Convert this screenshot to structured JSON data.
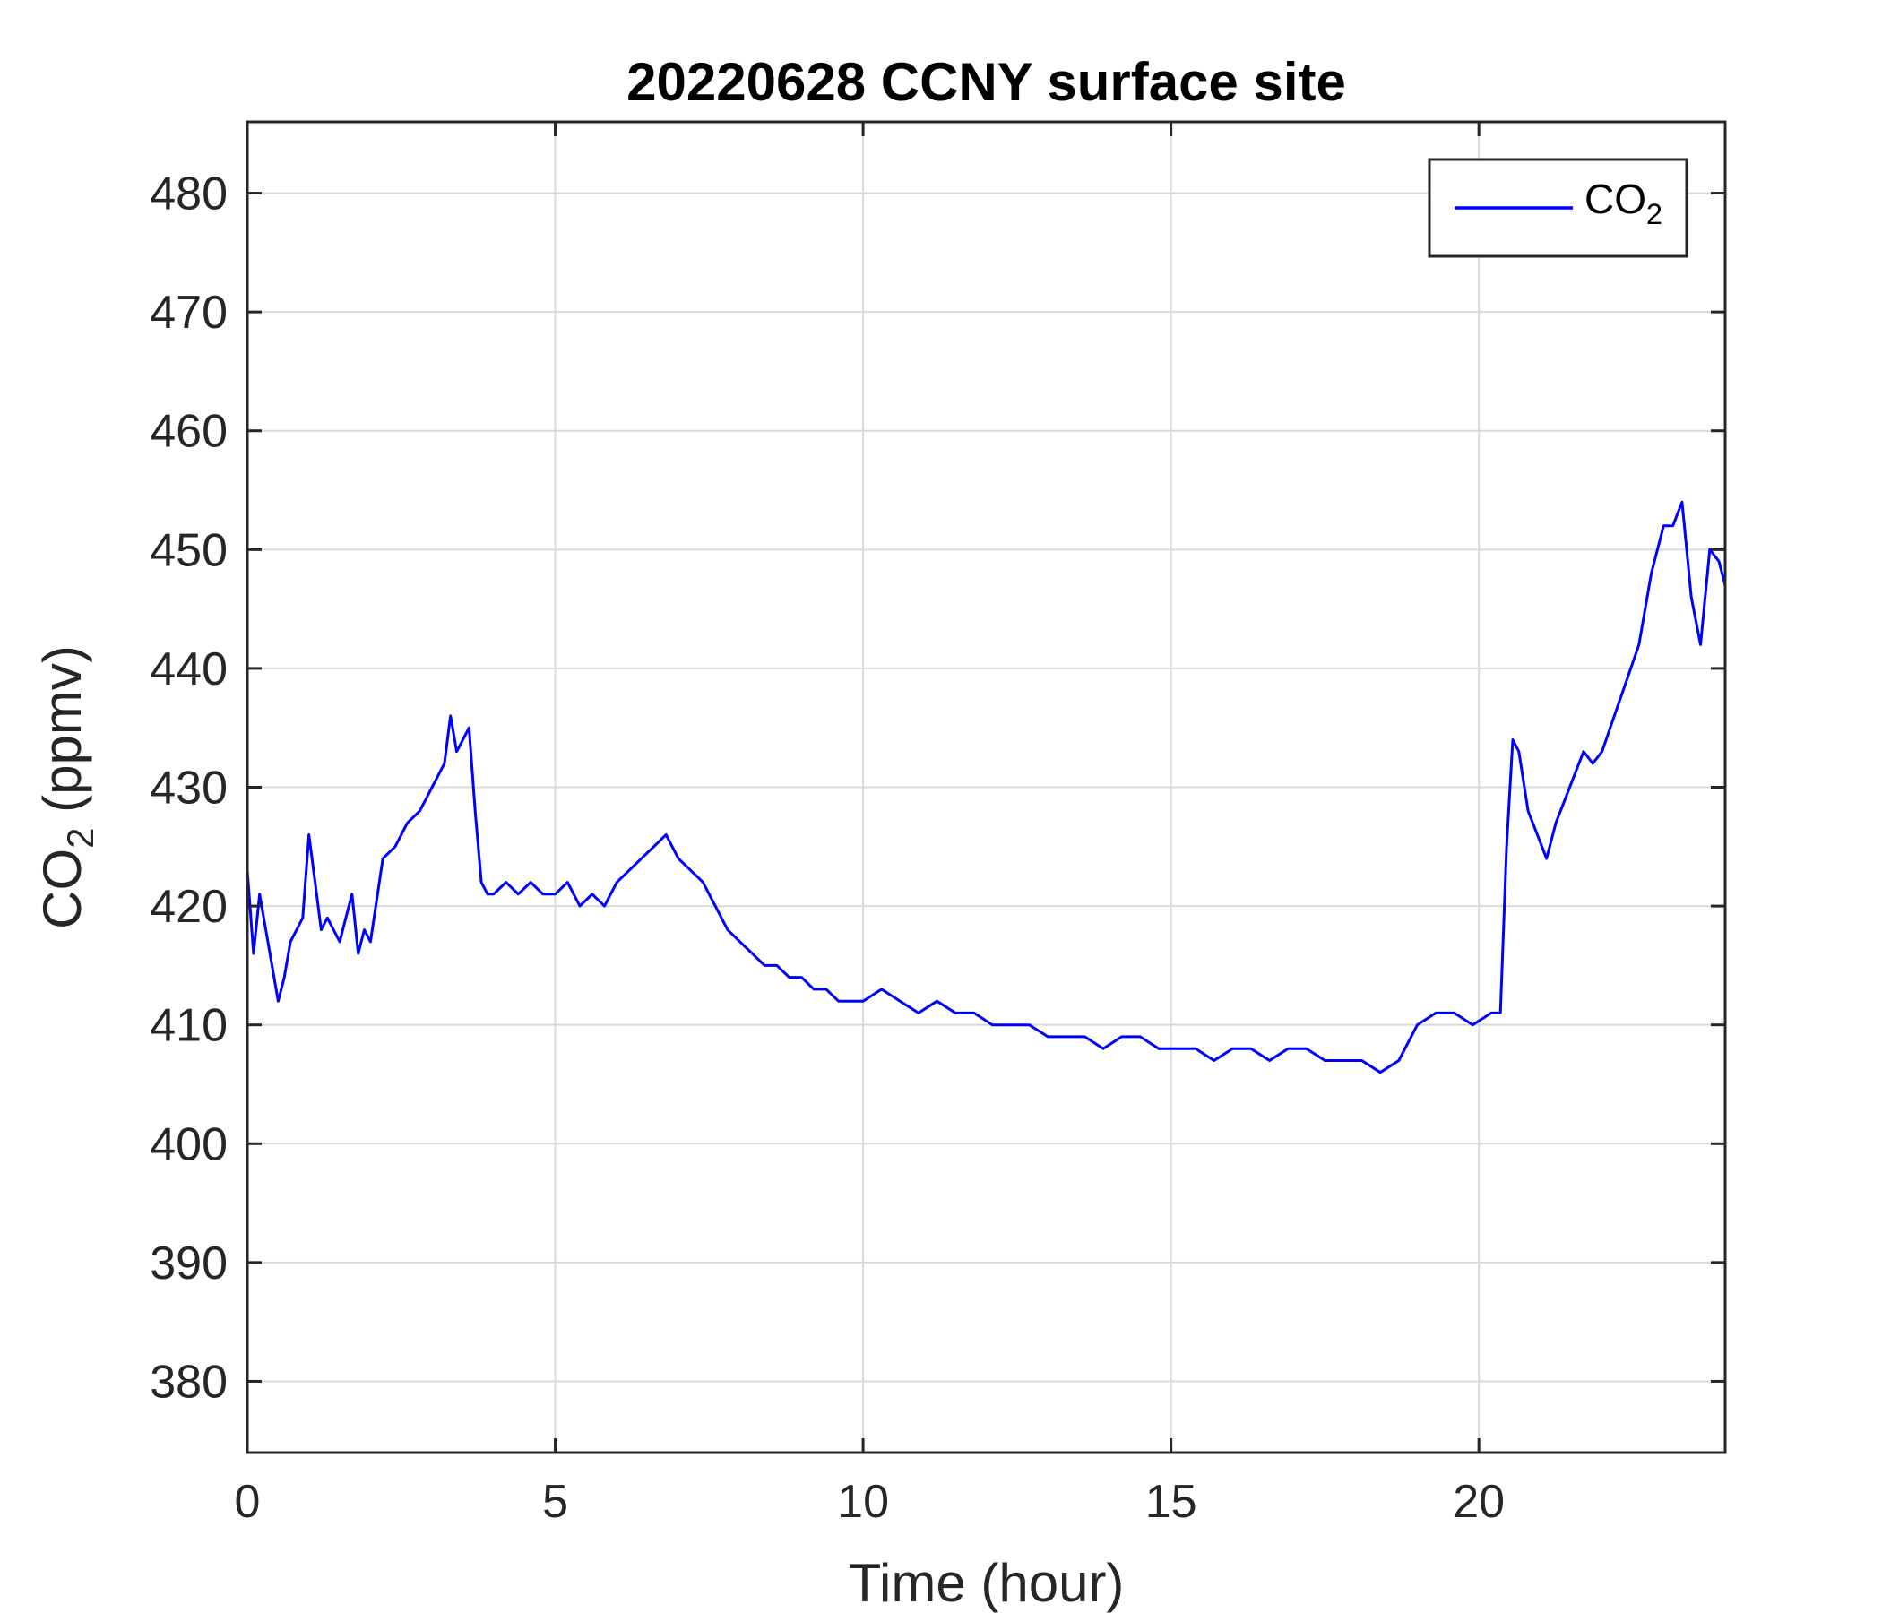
{
  "chart_data": {
    "type": "line",
    "title": "20220628 CCNY surface site",
    "xlabel": "Time (hour)",
    "ylabel": {
      "base": "CO",
      "sub": "2",
      "suffix": " (ppmv)"
    },
    "xlim": [
      0,
      24
    ],
    "ylim": [
      374,
      486
    ],
    "xticks": [
      0,
      5,
      10,
      15,
      20
    ],
    "yticks": [
      380,
      390,
      400,
      410,
      420,
      430,
      440,
      450,
      460,
      470,
      480
    ],
    "grid": true,
    "legend_position": "top-right",
    "series": [
      {
        "name": {
          "base": "CO",
          "sub": "2"
        },
        "color": "#0000FF",
        "x": [
          0.0,
          0.1,
          0.2,
          0.3,
          0.4,
          0.5,
          0.6,
          0.7,
          0.8,
          0.9,
          1.0,
          1.1,
          1.2,
          1.3,
          1.5,
          1.6,
          1.7,
          1.8,
          1.9,
          2.0,
          2.2,
          2.4,
          2.6,
          2.8,
          3.0,
          3.2,
          3.3,
          3.4,
          3.5,
          3.6,
          3.7,
          3.8,
          3.9,
          4.0,
          4.2,
          4.4,
          4.6,
          4.8,
          5.0,
          5.2,
          5.4,
          5.6,
          5.8,
          6.0,
          6.2,
          6.4,
          6.6,
          6.8,
          7.0,
          7.2,
          7.4,
          7.6,
          7.8,
          8.0,
          8.2,
          8.4,
          8.6,
          8.8,
          9.0,
          9.2,
          9.4,
          9.6,
          9.8,
          10.0,
          10.3,
          10.6,
          10.9,
          11.2,
          11.5,
          11.8,
          12.1,
          12.4,
          12.7,
          13.0,
          13.3,
          13.6,
          13.9,
          14.2,
          14.5,
          14.8,
          15.1,
          15.4,
          15.7,
          16.0,
          16.3,
          16.6,
          16.9,
          17.2,
          17.5,
          17.8,
          18.1,
          18.4,
          18.7,
          19.0,
          19.3,
          19.6,
          19.9,
          20.2,
          20.35,
          20.45,
          20.55,
          20.65,
          20.8,
          20.95,
          21.1,
          21.25,
          21.4,
          21.55,
          21.7,
          21.85,
          22.0,
          22.2,
          22.4,
          22.6,
          22.8,
          23.0,
          23.15,
          23.3,
          23.45,
          23.6,
          23.75,
          23.9,
          24.0
        ],
        "y": [
          423,
          416,
          421,
          418,
          415,
          412,
          414,
          417,
          418,
          419,
          426,
          422,
          418,
          419,
          417,
          419,
          421,
          416,
          418,
          417,
          424,
          425,
          427,
          428,
          430,
          432,
          436,
          433,
          434,
          435,
          428,
          422,
          421,
          421,
          422,
          421,
          422,
          421,
          421,
          422,
          420,
          421,
          420,
          422,
          423,
          424,
          425,
          426,
          424,
          423,
          422,
          420,
          418,
          417,
          416,
          415,
          415,
          414,
          414,
          413,
          413,
          412,
          412,
          412,
          413,
          412,
          411,
          412,
          411,
          411,
          410,
          410,
          410,
          409,
          409,
          409,
          408,
          409,
          409,
          408,
          408,
          408,
          407,
          408,
          408,
          407,
          408,
          408,
          407,
          407,
          407,
          406,
          407,
          410,
          411,
          411,
          410,
          411,
          411,
          425,
          434,
          433,
          428,
          426,
          424,
          427,
          429,
          431,
          433,
          432,
          433,
          436,
          439,
          442,
          448,
          452,
          452,
          454,
          446,
          442,
          450,
          449,
          447
        ]
      }
    ]
  }
}
